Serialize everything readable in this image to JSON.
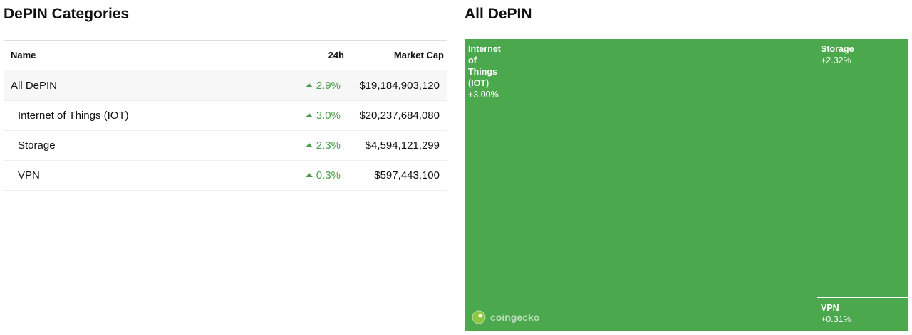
{
  "left": {
    "title": "DePIN Categories",
    "table": {
      "columns": [
        "Name",
        "24h",
        "Market Cap"
      ],
      "rows": [
        [
          "All DePIN",
          "2.9%",
          "$19,184,903,120"
        ],
        [
          "Internet of Things (IOT)",
          "3.0%",
          "$20,237,684,080"
        ],
        [
          "Storage",
          "2.3%",
          "$4,594,121,299"
        ],
        [
          "VPN",
          "0.3%",
          "$597,443,100"
        ]
      ]
    }
  },
  "right": {
    "title": "All DePIN",
    "treemap": {
      "tiles": [
        {
          "label": "Internet of Things (IOT)",
          "change": "+3.00%"
        },
        {
          "label": "Storage",
          "change": "+2.32%"
        },
        {
          "label": "VPN",
          "change": "+0.31%"
        }
      ],
      "brand": "coingecko"
    }
  }
}
